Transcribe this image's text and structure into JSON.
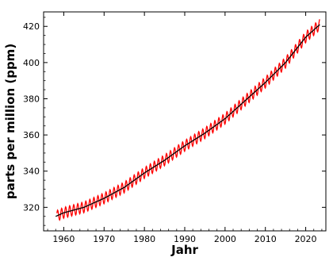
{
  "chart_data": {
    "type": "line",
    "xlabel": "Jahr",
    "ylabel": "parts per million (ppm)",
    "xlim": [
      1955,
      2025
    ],
    "ylim": [
      307,
      428
    ],
    "xticks": [
      1960,
      1970,
      1980,
      1990,
      2000,
      2010,
      2020
    ],
    "yticks": [
      320,
      340,
      360,
      380,
      400,
      420
    ],
    "grid": false,
    "ticks_inside": true,
    "seasonal_amplitude_ppm": 3,
    "series": [
      {
        "color": "#ff0000",
        "style": "monthly, seasonal oscillation",
        "x": [
          1958.3,
          2023.5
        ],
        "y": [
          315,
          421
        ]
      },
      {
        "color": "#000000",
        "style": "seasonally adjusted trend",
        "x": [
          1958,
          1960,
          1965,
          1970,
          1975,
          1980,
          1985,
          1990,
          1995,
          2000,
          2005,
          2010,
          2015,
          2020,
          2023.5
        ],
        "y": [
          315,
          317,
          320,
          325,
          331,
          339,
          346,
          354,
          361,
          369,
          379,
          389,
          400,
          414,
          421
        ]
      }
    ]
  }
}
